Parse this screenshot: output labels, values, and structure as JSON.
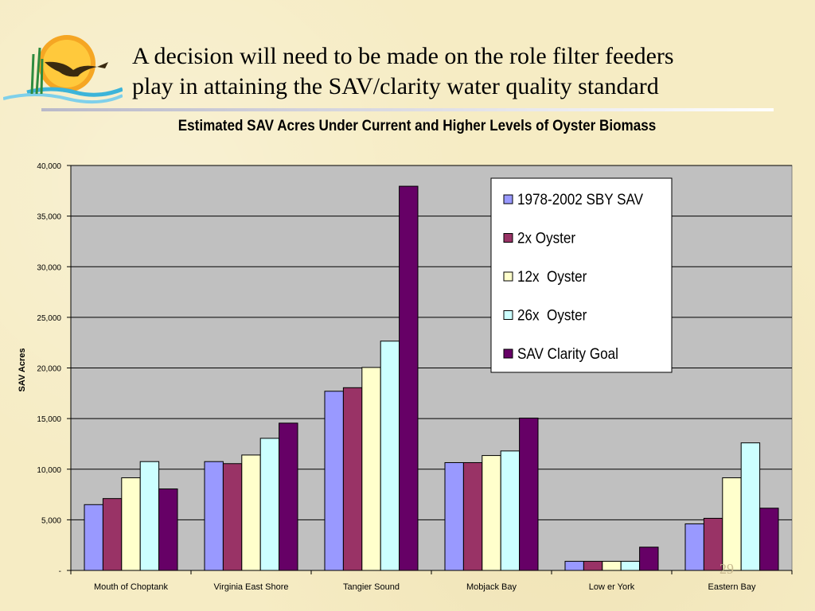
{
  "slide": {
    "title_line1": "A decision will need to be made on the role filter feeders",
    "title_line2": "play in attaining the SAV/clarity water quality standard",
    "page_number": "29"
  },
  "colors": {
    "background": "#f6ecc4",
    "plot_area": "#c0c0c0",
    "series": [
      "#9999ff",
      "#993366",
      "#ffffcc",
      "#ccffff",
      "#660066"
    ]
  },
  "chart_data": {
    "type": "bar",
    "title": "Estimated SAV Acres Under Current and Higher Levels of Oyster Biomass",
    "xlabel": "",
    "ylabel": "SAV Acres",
    "ylim": [
      0,
      40000
    ],
    "yticks": [
      0,
      5000,
      10000,
      15000,
      20000,
      25000,
      30000,
      35000,
      40000
    ],
    "ytick_labels": [
      "-",
      "5,000",
      "10,000",
      "15,000",
      "20,000",
      "25,000",
      "30,000",
      "35,000",
      "40,000"
    ],
    "grid": true,
    "legend_position": "top-right",
    "categories": [
      "Mouth of Choptank",
      "Virginia East Shore",
      "Tangier Sound",
      "Mobjack Bay",
      "Low er York",
      "Eastern Bay"
    ],
    "series": [
      {
        "name": "1978-2002 SBY SAV",
        "values": [
          6500,
          10750,
          17700,
          10650,
          900,
          4600
        ]
      },
      {
        "name": "2x Oyster",
        "values": [
          7100,
          10550,
          18050,
          10650,
          900,
          5150
        ]
      },
      {
        "name": "12x  Oyster",
        "values": [
          9150,
          11400,
          20050,
          11350,
          900,
          9150
        ]
      },
      {
        "name": "26x  Oyster",
        "values": [
          10750,
          13050,
          22650,
          11800,
          900,
          12600
        ]
      },
      {
        "name": "SAV Clarity Goal",
        "values": [
          8050,
          14550,
          37950,
          15050,
          2300,
          6150
        ]
      }
    ]
  }
}
